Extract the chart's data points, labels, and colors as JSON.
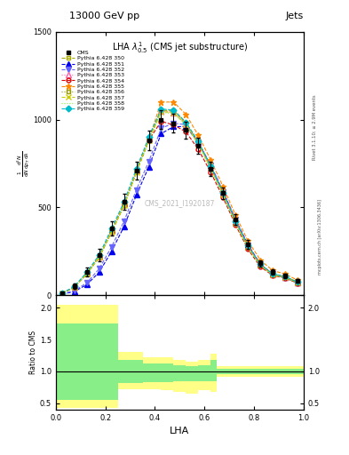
{
  "title_main": "13000 GeV pp",
  "title_right": "Jets",
  "plot_title": "LHA $\\lambda^{1}_{0.5}$ (CMS jet substructure)",
  "xlabel": "LHA",
  "ylabel_main": "mathrm d$^2$N\nmathrm d $p_T$ mathrm d lambda",
  "ylabel_ratio": "Ratio to CMS",
  "watermark": "CMS_2021_I1920187",
  "right_label": "Rivet 3.1.10; ≥ 2.9M events",
  "arxiv_label": "mcplots.cern.ch [arXiv:1306.3436]",
  "xlim": [
    0,
    1
  ],
  "ylim_main": [
    0,
    1500
  ],
  "ylim_ratio": [
    0.4,
    2.2
  ],
  "yticks_main": [
    0,
    500,
    1000,
    1500
  ],
  "yticks_ratio": [
    0.5,
    1.0,
    1.5,
    2.0
  ],
  "x_data": [
    0.025,
    0.075,
    0.125,
    0.175,
    0.225,
    0.275,
    0.325,
    0.375,
    0.425,
    0.475,
    0.525,
    0.575,
    0.625,
    0.675,
    0.725,
    0.775,
    0.825,
    0.875,
    0.925,
    0.975
  ],
  "cms_data": [
    10,
    50,
    130,
    230,
    380,
    530,
    710,
    880,
    1000,
    980,
    940,
    850,
    720,
    580,
    430,
    290,
    180,
    130,
    110,
    80
  ],
  "cms_err": [
    5,
    15,
    25,
    35,
    40,
    45,
    50,
    55,
    55,
    55,
    50,
    45,
    40,
    35,
    30,
    25,
    20,
    15,
    12,
    10
  ],
  "series": [
    {
      "label": "Pythia 6.428 350",
      "color": "#aaaa00",
      "linestyle": "--",
      "marker": "s",
      "markerfill": "none",
      "data": [
        8,
        45,
        120,
        215,
        360,
        510,
        700,
        880,
        1050,
        1050,
        980,
        870,
        730,
        580,
        420,
        280,
        175,
        120,
        105,
        75
      ]
    },
    {
      "label": "Pythia 6.428 351",
      "color": "#0000ee",
      "linestyle": "--",
      "marker": "^",
      "markerfill": "full",
      "data": [
        5,
        20,
        60,
        130,
        250,
        390,
        570,
        730,
        920,
        960,
        960,
        870,
        740,
        590,
        430,
        290,
        175,
        120,
        100,
        70
      ]
    },
    {
      "label": "Pythia 6.428 352",
      "color": "#6666ff",
      "linestyle": "--",
      "marker": "v",
      "markerfill": "full",
      "data": [
        6,
        25,
        70,
        150,
        275,
        420,
        600,
        760,
        950,
        980,
        970,
        870,
        740,
        590,
        430,
        285,
        175,
        120,
        100,
        70
      ]
    },
    {
      "label": "Pythia 6.428 353",
      "color": "#ff66aa",
      "linestyle": ":",
      "marker": "^",
      "markerfill": "none",
      "data": [
        9,
        48,
        125,
        220,
        370,
        520,
        710,
        890,
        1050,
        1040,
        975,
        865,
        725,
        575,
        415,
        275,
        172,
        118,
        103,
        73
      ]
    },
    {
      "label": "Pythia 6.428 354",
      "color": "#dd0000",
      "linestyle": "--",
      "marker": "o",
      "markerfill": "none",
      "data": [
        9,
        46,
        122,
        217,
        362,
        512,
        702,
        882,
        990,
        970,
        930,
        830,
        700,
        555,
        400,
        262,
        162,
        112,
        97,
        68
      ]
    },
    {
      "label": "Pythia 6.428 355",
      "color": "#ff8800",
      "linestyle": "--",
      "marker": "*",
      "markerfill": "full",
      "data": [
        9,
        47,
        124,
        219,
        366,
        516,
        706,
        886,
        1100,
        1100,
        1030,
        910,
        770,
        618,
        455,
        310,
        200,
        140,
        120,
        85
      ]
    },
    {
      "label": "Pythia 6.428 356",
      "color": "#999900",
      "linestyle": ":",
      "marker": "s",
      "markerfill": "none",
      "data": [
        9,
        47,
        123,
        218,
        364,
        514,
        704,
        884,
        1055,
        1055,
        985,
        872,
        732,
        580,
        420,
        280,
        173,
        119,
        104,
        73
      ]
    },
    {
      "label": "Pythia 6.428 357",
      "color": "#cccc00",
      "linestyle": "--",
      "marker": "x",
      "markerfill": "none",
      "data": [
        9,
        46,
        121,
        216,
        361,
        511,
        701,
        881,
        1045,
        1040,
        972,
        862,
        722,
        572,
        412,
        272,
        170,
        116,
        101,
        71
      ]
    },
    {
      "label": "Pythia 6.428 358",
      "color": "#88ee44",
      "linestyle": ":",
      "marker": "None",
      "markerfill": "none",
      "data": [
        9,
        46,
        120,
        215,
        359,
        509,
        699,
        879,
        1040,
        1035,
        968,
        858,
        718,
        568,
        408,
        268,
        168,
        114,
        99,
        70
      ]
    },
    {
      "label": "Pythia 6.428 359",
      "color": "#00bbcc",
      "linestyle": "--",
      "marker": "D",
      "markerfill": "full",
      "data": [
        10,
        50,
        130,
        230,
        380,
        530,
        720,
        900,
        1060,
        1055,
        985,
        875,
        735,
        583,
        423,
        283,
        175,
        121,
        106,
        75
      ]
    }
  ],
  "ratio_band_yellow": {
    "x_edges": [
      0.0,
      0.2,
      0.25,
      0.35,
      0.425,
      0.475,
      0.525,
      0.575,
      0.625,
      0.65,
      1.0
    ],
    "low": [
      0.42,
      0.42,
      0.72,
      0.72,
      0.7,
      0.68,
      0.65,
      0.7,
      0.68,
      0.92,
      0.92
    ],
    "high": [
      2.05,
      2.05,
      1.3,
      1.22,
      1.22,
      1.18,
      1.15,
      1.18,
      1.28,
      1.08,
      1.08
    ]
  },
  "ratio_band_green": {
    "x_edges": [
      0.0,
      0.2,
      0.25,
      0.35,
      0.425,
      0.475,
      0.525,
      0.575,
      0.625,
      0.65,
      1.0
    ],
    "low": [
      0.55,
      0.55,
      0.82,
      0.83,
      0.83,
      0.84,
      0.84,
      0.85,
      0.84,
      0.96,
      0.96
    ],
    "high": [
      1.75,
      1.75,
      1.18,
      1.12,
      1.12,
      1.1,
      1.08,
      1.1,
      1.18,
      1.04,
      1.04
    ]
  }
}
